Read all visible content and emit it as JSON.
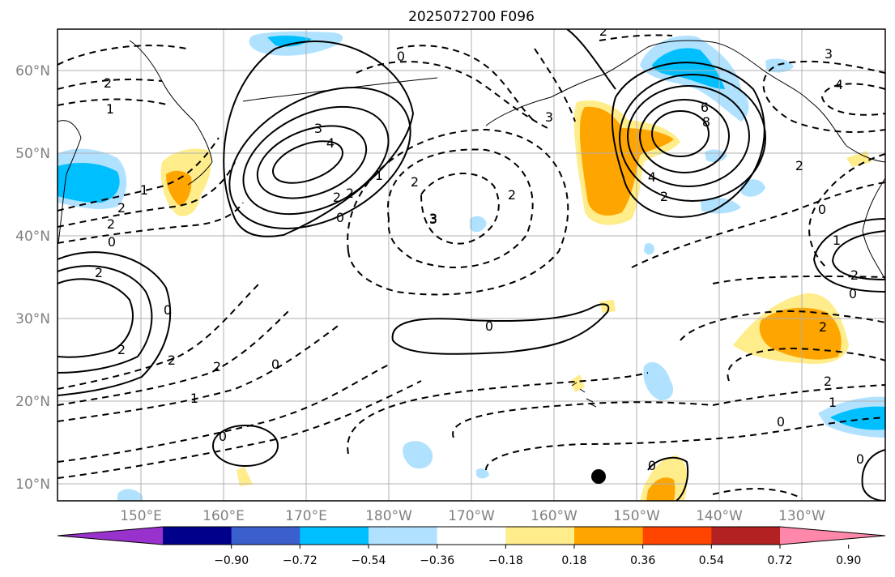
{
  "title": "2025072700 F096",
  "lat_labels": [
    "60°N",
    "50°N",
    "40°N",
    "30°N",
    "20°N",
    "10°N"
  ],
  "lon_labels": [
    "150°E",
    "160°E",
    "170°E",
    "180°W",
    "170°W",
    "160°W",
    "150°W",
    "140°W",
    "130°W"
  ],
  "colorbar": {
    "tick_labels": [
      "−0.90",
      "−0.72",
      "−0.54",
      "−0.36",
      "−0.18",
      "0.18",
      "0.36",
      "0.54",
      "0.72",
      "0.90"
    ],
    "colors": [
      "#9932cc",
      "#00008b",
      "#3a5fcd",
      "#00bfff",
      "#b0e2ff",
      "#ffffff",
      "#ffec8b",
      "#ffa500",
      "#ff4500",
      "#b22222",
      "#ff88aa"
    ]
  },
  "contour_labels": [
    "2",
    "1",
    "0",
    "3",
    "4",
    "3",
    "2",
    "2",
    "0",
    "1",
    "2",
    "3",
    "2",
    "2",
    "6",
    "8",
    "4",
    "2",
    "3",
    "4",
    "2",
    "0",
    "1",
    "2",
    "0",
    "2",
    "3",
    "2",
    "1",
    "2",
    "0",
    "0",
    "0",
    "2",
    "2",
    "1",
    "0",
    "0",
    "0",
    "1",
    "0",
    "2",
    "2",
    "0",
    "2"
  ],
  "colors": {
    "land_outline": "#000000",
    "grid": "#b0b0b0",
    "contour": "#000000"
  }
}
